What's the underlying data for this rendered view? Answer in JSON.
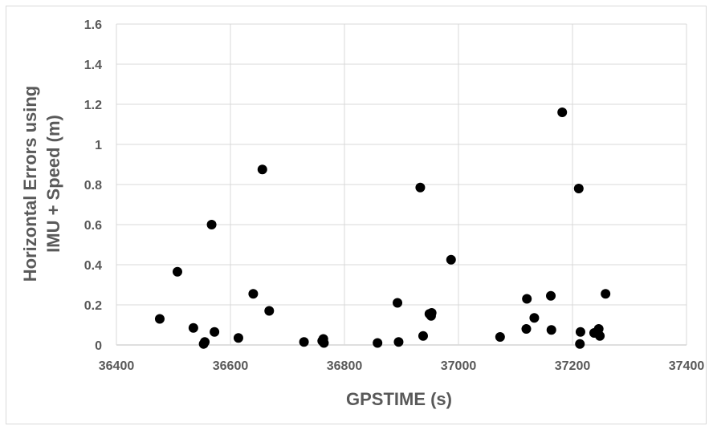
{
  "chart_data": {
    "type": "scatter",
    "xlabel": "GPSTIME (s)",
    "ylabel_lines": [
      "Horizontal Errors using",
      "IMU + Speed (m)"
    ],
    "xlim": [
      36400,
      37400
    ],
    "ylim": [
      0,
      1.6
    ],
    "x_ticks": [
      "36400",
      "36600",
      "36800",
      "37000",
      "37200",
      "37400"
    ],
    "y_ticks": [
      "0",
      "0.2",
      "0.4",
      "0.6",
      "0.8",
      "1",
      "1.2",
      "1.4",
      "1.6"
    ],
    "grid": true,
    "marker_color": "#000000",
    "series": [
      {
        "points": [
          [
            36476,
            0.13
          ],
          [
            36507,
            0.365
          ],
          [
            36535,
            0.085
          ],
          [
            36553,
            0.005
          ],
          [
            36555,
            0.015
          ],
          [
            36567,
            0.6
          ],
          [
            36572,
            0.065
          ],
          [
            36614,
            0.035
          ],
          [
            36640,
            0.255
          ],
          [
            36656,
            0.875
          ],
          [
            36668,
            0.17
          ],
          [
            36729,
            0.015
          ],
          [
            36761,
            0.02
          ],
          [
            36763,
            0.03
          ],
          [
            36764,
            0.01
          ],
          [
            36858,
            0.01
          ],
          [
            36893,
            0.21
          ],
          [
            36895,
            0.015
          ],
          [
            36933,
            0.785
          ],
          [
            36938,
            0.045
          ],
          [
            36949,
            0.155
          ],
          [
            36952,
            0.145
          ],
          [
            36953,
            0.16
          ],
          [
            36987,
            0.425
          ],
          [
            37073,
            0.04
          ],
          [
            37119,
            0.08
          ],
          [
            37120,
            0.23
          ],
          [
            37133,
            0.135
          ],
          [
            37162,
            0.245
          ],
          [
            37163,
            0.075
          ],
          [
            37182,
            1.16
          ],
          [
            37211,
            0.78
          ],
          [
            37213,
            0.005
          ],
          [
            37214,
            0.065
          ],
          [
            37238,
            0.06
          ],
          [
            37246,
            0.08
          ],
          [
            37248,
            0.045
          ],
          [
            37258,
            0.255
          ]
        ]
      }
    ]
  }
}
